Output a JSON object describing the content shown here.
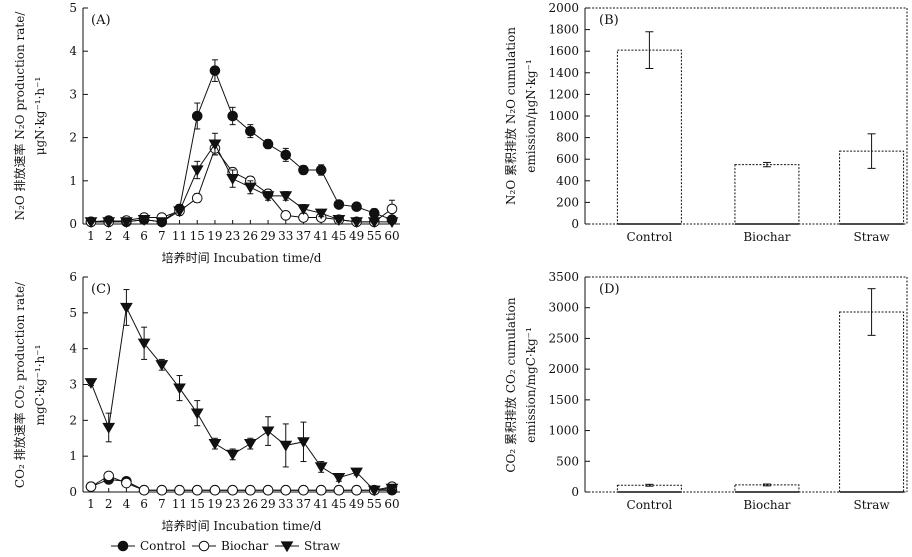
{
  "chart_data": [
    {
      "panel": "(A)",
      "type": "line",
      "xlabel": "培养时间 Incubation time/d",
      "ylabel_lines": [
        "N₂O 排放速率 N₂O production rate/",
        "μgN·kg⁻¹·h⁻¹"
      ],
      "categories": [
        "1",
        "2",
        "4",
        "6",
        "7",
        "11",
        "15",
        "19",
        "23",
        "26",
        "29",
        "33",
        "37",
        "41",
        "45",
        "49",
        "55",
        "60"
      ],
      "ylim": [
        0,
        5
      ],
      "yticks": [
        0,
        1,
        2,
        3,
        4,
        5
      ],
      "series": [
        {
          "name": "Control",
          "marker": "filled-circle",
          "values": [
            0.05,
            0.08,
            0.05,
            0.1,
            0.05,
            0.35,
            2.5,
            3.55,
            2.5,
            2.15,
            1.85,
            1.6,
            1.25,
            1.25,
            0.45,
            0.4,
            0.25,
            0.1
          ],
          "errors": [
            0.03,
            0.03,
            0.03,
            0.05,
            0.03,
            0.1,
            0.3,
            0.25,
            0.2,
            0.15,
            0.1,
            0.15,
            0.1,
            0.12,
            0.08,
            0.05,
            0.1,
            0.05
          ]
        },
        {
          "name": "Biochar",
          "marker": "open-circle",
          "values": [
            0.05,
            0.05,
            0.08,
            0.15,
            0.15,
            0.3,
            0.6,
            1.75,
            1.2,
            1.0,
            0.7,
            0.2,
            0.15,
            0.15,
            0.1,
            0.05,
            0.05,
            0.35
          ],
          "errors": [
            0.03,
            0.03,
            0.03,
            0.05,
            0.05,
            0.08,
            0.1,
            0.15,
            0.1,
            0.1,
            0.1,
            0.08,
            0.05,
            0.05,
            0.03,
            0.03,
            0.03,
            0.2
          ]
        },
        {
          "name": "Straw",
          "marker": "filled-triangle-down",
          "values": [
            0.05,
            0.05,
            0.05,
            0.1,
            0.05,
            0.3,
            1.25,
            1.85,
            1.05,
            0.85,
            0.65,
            0.65,
            0.35,
            0.25,
            0.1,
            0.05,
            0.05,
            0.05
          ],
          "errors": [
            0.03,
            0.03,
            0.03,
            0.05,
            0.03,
            0.1,
            0.2,
            0.25,
            0.2,
            0.15,
            0.1,
            0.1,
            0.1,
            0.08,
            0.05,
            0.03,
            0.03,
            0.03
          ]
        }
      ]
    },
    {
      "panel": "(B)",
      "type": "bar",
      "ylabel_lines": [
        "N₂O 累积排放 N₂O cumulation",
        "emission/μgN·kg⁻¹"
      ],
      "categories": [
        "Control",
        "Biochar",
        "Straw"
      ],
      "values": [
        1610,
        550,
        675
      ],
      "errors": [
        170,
        20,
        160
      ],
      "ylim": [
        0,
        2000
      ],
      "yticks": [
        0,
        200,
        400,
        600,
        800,
        1000,
        1200,
        1400,
        1600,
        1800,
        2000
      ]
    },
    {
      "panel": "(C)",
      "type": "line",
      "xlabel": "培养时间 Incubation time/d",
      "ylabel_lines": [
        "CO₂ 排放速率 CO₂ production rate/",
        "mgC·kg⁻¹·h⁻¹"
      ],
      "categories": [
        "1",
        "2",
        "4",
        "6",
        "7",
        "11",
        "15",
        "19",
        "23",
        "26",
        "29",
        "33",
        "37",
        "41",
        "45",
        "49",
        "55",
        "60"
      ],
      "ylim": [
        0,
        6
      ],
      "yticks": [
        0,
        1,
        2,
        3,
        4,
        5,
        6
      ],
      "series": [
        {
          "name": "Control",
          "marker": "filled-circle",
          "values": [
            0.15,
            0.35,
            0.3,
            0.05,
            0.05,
            0.05,
            0.05,
            0.05,
            0.05,
            0.05,
            0.05,
            0.05,
            0.05,
            0.05,
            0.05,
            0.05,
            0.05,
            0.05
          ],
          "errors": [
            0.03,
            0.05,
            0.05,
            0.02,
            0.02,
            0.02,
            0.02,
            0.02,
            0.02,
            0.02,
            0.02,
            0.02,
            0.02,
            0.02,
            0.02,
            0.02,
            0.02,
            0.02
          ]
        },
        {
          "name": "Biochar",
          "marker": "open-circle",
          "values": [
            0.15,
            0.45,
            0.25,
            0.05,
            0.05,
            0.05,
            0.05,
            0.05,
            0.05,
            0.05,
            0.05,
            0.05,
            0.05,
            0.05,
            0.05,
            0.05,
            0.05,
            0.15
          ],
          "errors": [
            0.03,
            0.08,
            0.05,
            0.02,
            0.02,
            0.02,
            0.02,
            0.02,
            0.02,
            0.02,
            0.02,
            0.02,
            0.02,
            0.02,
            0.02,
            0.02,
            0.02,
            0.05
          ]
        },
        {
          "name": "Straw",
          "marker": "filled-triangle-down",
          "values": [
            3.05,
            1.8,
            5.15,
            4.15,
            3.55,
            2.9,
            2.2,
            1.35,
            1.05,
            1.35,
            1.7,
            1.3,
            1.4,
            0.7,
            0.4,
            0.55,
            0.05,
            0.1
          ],
          "errors": [
            0.08,
            0.4,
            0.5,
            0.45,
            0.15,
            0.35,
            0.35,
            0.15,
            0.15,
            0.15,
            0.4,
            0.6,
            0.55,
            0.15,
            0.1,
            0.08,
            0.03,
            0.05
          ]
        }
      ]
    },
    {
      "panel": "(D)",
      "type": "bar",
      "ylabel_lines": [
        "CO₂ 累积排放 CO₂ cumulation",
        "emission/mgC·kg⁻¹"
      ],
      "categories": [
        "Control",
        "Biochar",
        "Straw"
      ],
      "values": [
        110,
        115,
        2930
      ],
      "errors": [
        15,
        15,
        380
      ],
      "ylim": [
        0,
        3500
      ],
      "yticks": [
        0,
        500,
        1000,
        1500,
        2000,
        2500,
        3000,
        3500
      ]
    }
  ],
  "legend": {
    "items": [
      "Control",
      "Biochar",
      "Straw"
    ],
    "placement": "bottom-left"
  }
}
